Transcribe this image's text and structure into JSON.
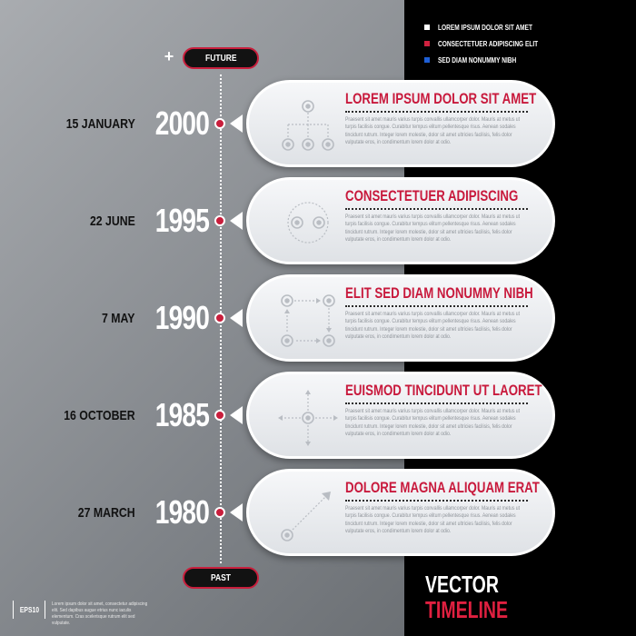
{
  "legend": [
    {
      "label": "LOREM IPSUM DOLOR SIT AMET",
      "color": "#ffffff"
    },
    {
      "label": "CONSECTETUER ADIPISCING ELIT",
      "color": "#d0213f"
    },
    {
      "label": "SED DIAM NONUMMY NIBH",
      "color": "#1e5fd6"
    }
  ],
  "timeline": {
    "future_label": "FUTURE",
    "past_label": "PAST",
    "plus_symbol": "+"
  },
  "events": [
    {
      "day": "15 JANUARY",
      "year": "2000",
      "title": "LOREM IPSUM DOLOR SIT AMET",
      "body": "Praesent sit amet mauris varius turpis convallis ullamcorper dolor. Mauris at metus ut turpis facilisis congue. Curabitur tempus elitum pellentesque risus. Aenean sodales tincidunt rutrum. Integer lorem molestie, dolor sit amet ultricies facilisis, felis dolor vulputate eros, in condimentum lorem dolor at odio.",
      "icon": "hierarchy-icon"
    },
    {
      "day": "22 JUNE",
      "year": "1995",
      "title": "CONSECTETUER ADIPISCING",
      "body": "Praesent sit amet mauris varius turpis convallis ullamcorper dolor. Mauris at metus ut turpis facilisis congue. Curabitur tempus elitum pellentesque risus. Aenean sodales tincidunt rutrum. Integer lorem molestie, dolor sit amet ultricies facilisis, felis dolor vulputate eros, in condimentum lorem dolor at odio.",
      "icon": "cycle-icon"
    },
    {
      "day": "7 MAY",
      "year": "1990",
      "title": "ELIT SED DIAM NONUMMY NIBH",
      "body": "Praesent sit amet mauris varius turpis convallis ullamcorper dolor. Mauris at metus ut turpis facilisis congue. Curabitur tempus elitum pellentesque risus. Aenean sodales tincidunt rutrum. Integer lorem molestie, dolor sit amet ultricies facilisis, felis dolor vulputate eros, in condimentum lorem dolor at odio.",
      "icon": "process-flow-icon"
    },
    {
      "day": "16 OCTOBER",
      "year": "1985",
      "title": "EUISMOD TINCIDUNT UT LAORET",
      "body": "Praesent sit amet mauris varius turpis convallis ullamcorper dolor. Mauris at metus ut turpis facilisis congue. Curabitur tempus elitum pellentesque risus. Aenean sodales tincidunt rutrum. Integer lorem molestie, dolor sit amet ultricies facilisis, felis dolor vulputate eros, in condimentum lorem dolor at odio.",
      "icon": "radial-arrows-icon"
    },
    {
      "day": "27 MARCH",
      "year": "1980",
      "title": "DOLORE MAGNA ALIQUAM ERAT",
      "body": "Praesent sit amet mauris varius turpis convallis ullamcorper dolor. Mauris at metus ut turpis facilisis congue. Curabitur tempus elitum pellentesque risus. Aenean sodales tincidunt rutrum. Integer lorem molestie, dolor sit amet ultricies facilisis, felis dolor vulputate eros, in condimentum lorem dolor at odio.",
      "icon": "diagonal-arrow-icon"
    }
  ],
  "footer": {
    "eps_label": "EPS10",
    "text": "Lorem ipsum dolor sit amet, consectetur adipiscing elit. Sed dapibus augue etrius nunc iaculis elementum. Cras scelerisque rutrum elit sed vulputate."
  },
  "heading": {
    "line1": "VECTOR",
    "line2": "TIMELINE"
  },
  "colors": {
    "accent_red": "#c8193c",
    "panel_dark": "#000000",
    "card_light": "#eef0f2"
  }
}
